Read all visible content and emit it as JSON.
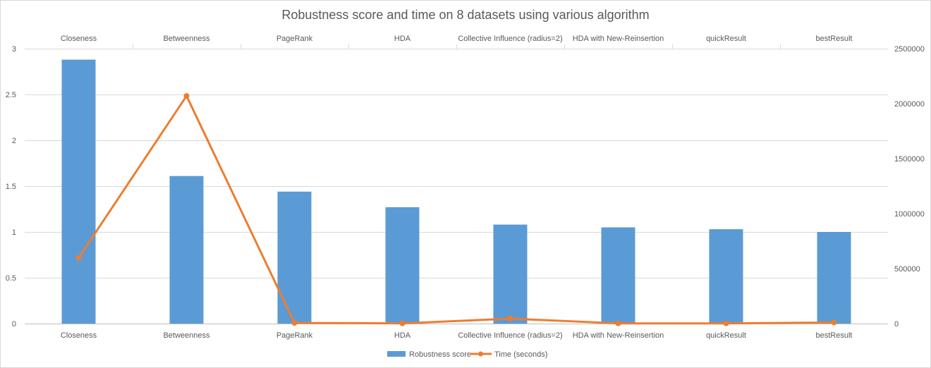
{
  "chart_data": {
    "type": "bar",
    "title": "Robustness score and time on 8 datasets using various algorithm",
    "categories": [
      "Closeness",
      "Betweenness",
      "PageRank",
      "HDA",
      "Collective Influence (radius=2)",
      "HDA with New-Reinsertion",
      "quickResult",
      "bestResult"
    ],
    "series": [
      {
        "name": "Robustness score",
        "type": "bar",
        "axis": "left",
        "color": "#5b9bd5",
        "values": [
          2.88,
          1.61,
          1.44,
          1.27,
          1.08,
          1.05,
          1.03,
          1.0
        ]
      },
      {
        "name": "Time (seconds)",
        "type": "line",
        "axis": "right",
        "color": "#ed7d31",
        "values": [
          597000,
          2070000,
          6000,
          2000,
          45000,
          2000,
          2000,
          10000
        ]
      }
    ],
    "y_left": {
      "ylim": [
        0,
        3
      ],
      "ticks": [
        "0",
        "0.5",
        "1",
        "1.5",
        "2",
        "2.5",
        "3"
      ]
    },
    "y_right": {
      "ylim": [
        0,
        2500000
      ],
      "ticks": [
        "0",
        "500000",
        "1000000",
        "1500000",
        "2000000",
        "2500000"
      ]
    },
    "category_labels_top": true,
    "grid": true,
    "legend": "bottom"
  }
}
